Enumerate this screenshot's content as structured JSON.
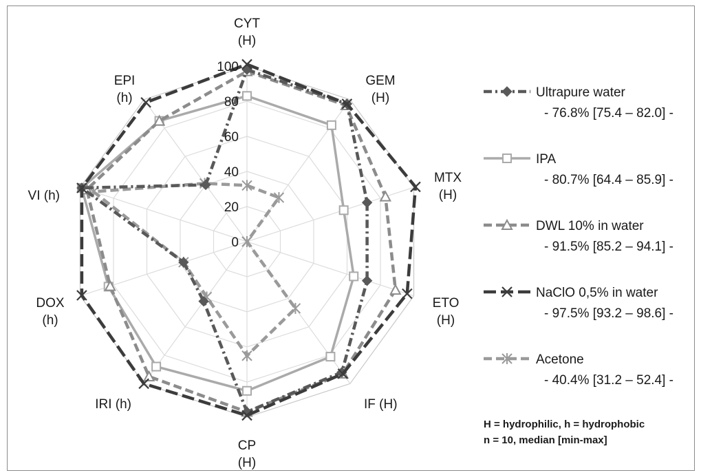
{
  "chart_data": {
    "type": "radar",
    "axes": [
      {
        "label": "CYT",
        "sub": "(H)"
      },
      {
        "label": "GEM",
        "sub": "(H)"
      },
      {
        "label": "MTX",
        "sub": "(H)"
      },
      {
        "label": "ETO",
        "sub": "(H)"
      },
      {
        "label": "IF (H)",
        "sub": ""
      },
      {
        "label": "CP",
        "sub": "(H)"
      },
      {
        "label": "IRI (h)",
        "sub": ""
      },
      {
        "label": "DOX",
        "sub": "(h)"
      },
      {
        "label": "VI (h)",
        "sub": ""
      },
      {
        "label": "EPI",
        "sub": "(h)"
      }
    ],
    "radial_ticks": [
      "0",
      "20",
      "40",
      "60",
      "80",
      "100"
    ],
    "rmax": 100,
    "series": [
      {
        "name": "Ultrapure water",
        "summary": "- 76.8% [75.4 – 82.0] -",
        "values": [
          98,
          97,
          72,
          72,
          92,
          97,
          42,
          38,
          99,
          40
        ],
        "color": "#595959",
        "marker": "diamond",
        "dash": "dashdot"
      },
      {
        "name": "IPA",
        "summary": "- 80.7% [64.4 – 85.9] -",
        "values": [
          83,
          82,
          58,
          64,
          81,
          85,
          88,
          83,
          99,
          85
        ],
        "color": "#aaaaaa",
        "marker": "square",
        "dash": "solid"
      },
      {
        "name": "DWL 10% in water",
        "summary": "- 91.5% [85.2 – 94.1] -",
        "values": [
          97,
          96,
          83,
          89,
          93,
          97,
          95,
          82,
          96,
          85
        ],
        "color": "#8c8c8c",
        "marker": "triangle",
        "dash": "dash"
      },
      {
        "name": "NaClO 0,5% in water",
        "summary": "- 97.5% [93.2 – 98.6] -",
        "values": [
          101,
          97,
          101,
          96,
          93,
          99,
          100,
          99,
          99,
          98
        ],
        "color": "#3c3c3c",
        "marker": "x",
        "dash": "longdash"
      },
      {
        "name": "Acetone",
        "summary": "- 40.4% [31.2 – 52.4] -",
        "values": [
          32,
          31,
          0,
          0,
          47,
          65,
          39,
          38,
          92,
          41
        ],
        "color": "#9a9a9a",
        "marker": "asterisk",
        "dash": "dash"
      }
    ],
    "notes": [
      "H = hydrophilic, h = hydrophobic",
      "n = 10, median [min-max]"
    ]
  }
}
